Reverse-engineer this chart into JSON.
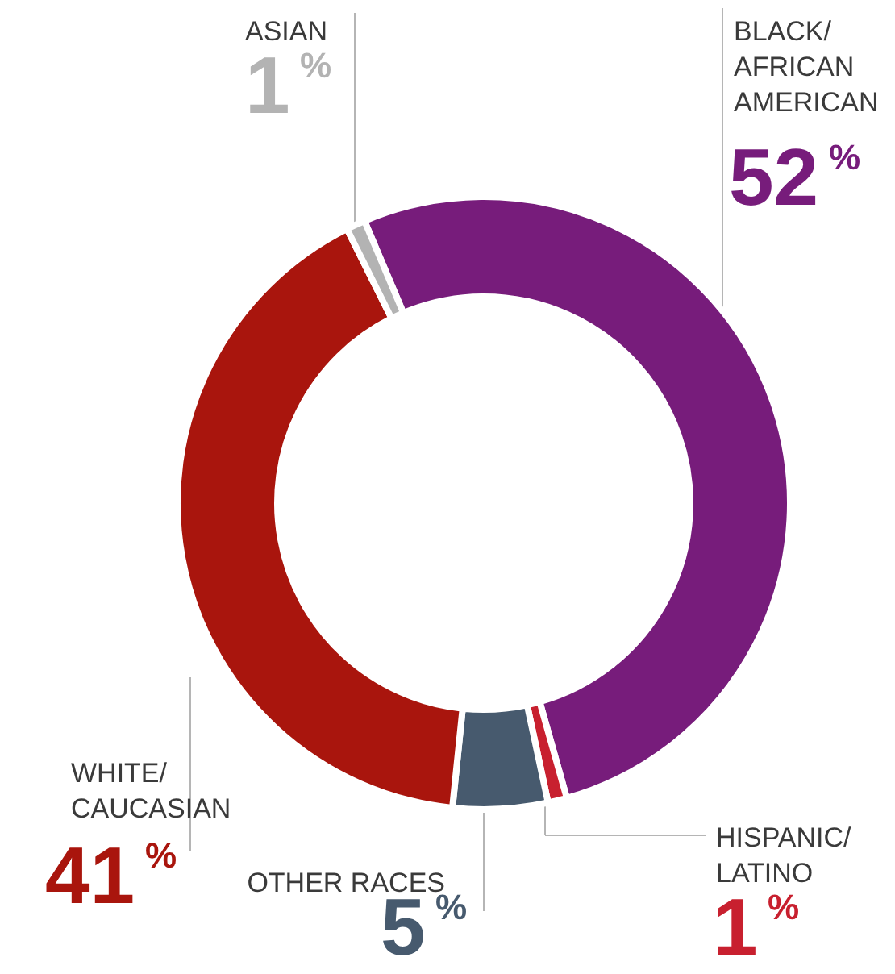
{
  "chart_data": {
    "type": "donut",
    "categories": [
      "BLACK/\nAFRICAN\nAMERICAN",
      "HISPANIC/\nLATINO",
      "OTHER RACES",
      "WHITE/\nCAUCASIAN",
      "ASIAN"
    ],
    "values": [
      52,
      1,
      5,
      41,
      1
    ],
    "colors": [
      "#771c7b",
      "#c8202f",
      "#475a6e",
      "#a9150d",
      "#b3b3b3"
    ],
    "value_labels": [
      "52%",
      "1%",
      "5%",
      "41%",
      "1%"
    ]
  }
}
